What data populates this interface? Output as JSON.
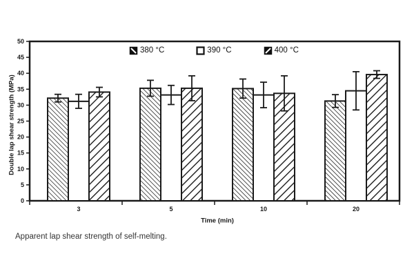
{
  "colors": {
    "ink": "#1a1a1a",
    "background": "#ffffff",
    "caption_text": "#333333"
  },
  "figure": {
    "caption": "Apparent lap shear strength of self-melting."
  },
  "chart_data": {
    "type": "bar",
    "title": "",
    "xlabel": "Time (min)",
    "ylabel": "Double lap shear strength (MPa)",
    "categories": [
      "3",
      "5",
      "10",
      "20"
    ],
    "ylim": [
      0,
      50
    ],
    "ytick_step": 5,
    "grid": false,
    "legend_position": "top-center-inside-plot",
    "series": [
      {
        "name": "380 °C",
        "hatch": "backslash-dense",
        "values": [
          32.2,
          35.3,
          35.2,
          31.3
        ],
        "errors": [
          1.2,
          2.5,
          3.0,
          2.0
        ]
      },
      {
        "name": "390 °C",
        "hatch": "none",
        "values": [
          31.2,
          33.2,
          33.2,
          34.5
        ],
        "errors": [
          2.2,
          3.0,
          4.0,
          6.0
        ]
      },
      {
        "name": "400 °C",
        "hatch": "forwardslash",
        "values": [
          34.1,
          35.3,
          33.7,
          39.6
        ],
        "errors": [
          1.5,
          3.9,
          5.5,
          1.2
        ]
      }
    ]
  }
}
